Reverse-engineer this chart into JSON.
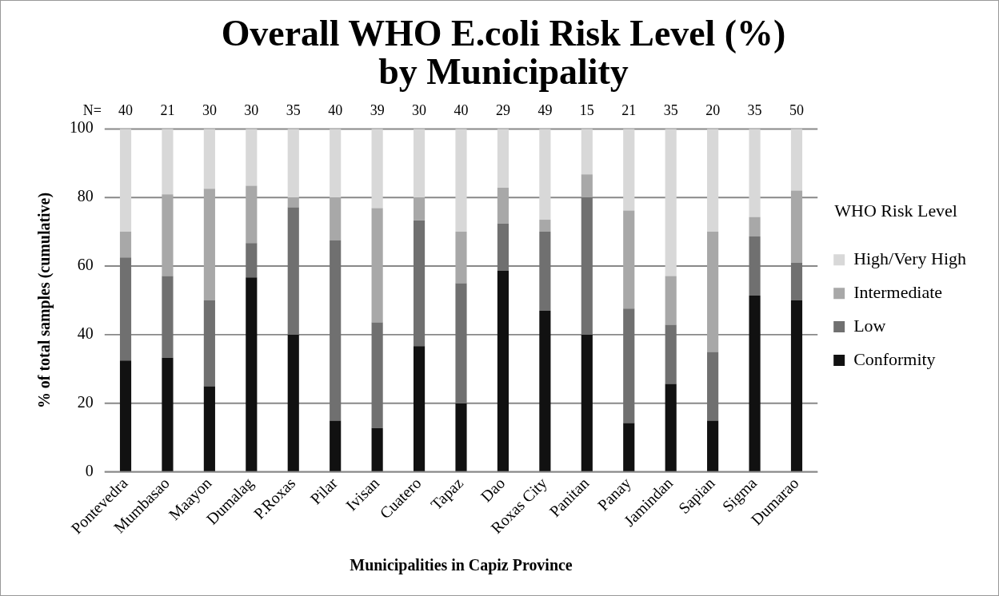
{
  "chart_data": {
    "type": "bar",
    "title": "Overall WHO E.coli Risk Level (%)\nby Municipality",
    "xlabel": "Municipalities in Capiz Province",
    "ylabel": "% of total samples (cumulative)",
    "legend_title": "WHO Risk Level",
    "categories": [
      "Pontevedra",
      "Mumbasao",
      "Maayon",
      "Dumalag",
      "P.Roxas",
      "Pilar",
      "Ivisan",
      "Cuatero",
      "Tapaz",
      "Dao",
      "Roxas City",
      "Panitan",
      "Panay",
      "Jamindan",
      "Sapian",
      "Sigma",
      "Dumarao"
    ],
    "stacked": true,
    "ylim": [
      0,
      100
    ],
    "yticks": [
      0,
      20,
      40,
      60,
      80,
      100
    ],
    "grid": "y",
    "legend": "right",
    "series": [
      {
        "name": "Conformity",
        "color": "#111111",
        "values": [
          32.5,
          33.3,
          25,
          56.7,
          40,
          15,
          12.8,
          36.7,
          20,
          58.6,
          47,
          40,
          14.3,
          25.7,
          15,
          51.4,
          50
        ]
      },
      {
        "name": "Low",
        "color": "#707070",
        "values": [
          30,
          23.8,
          25,
          10,
          37.1,
          52.5,
          30.8,
          36.6,
          35,
          13.8,
          23,
          40,
          33.3,
          17.2,
          20,
          17.2,
          11
        ]
      },
      {
        "name": "Intermediate",
        "color": "#a8a8a8",
        "values": [
          7.5,
          23.8,
          32.5,
          16.7,
          2.9,
          12.5,
          33.3,
          6.7,
          15,
          10.4,
          3.5,
          6.7,
          28.6,
          14.2,
          35,
          5.7,
          21
        ]
      },
      {
        "name": "High/Very High",
        "color": "#d8d8d8",
        "values": [
          30,
          19.1,
          17.5,
          16.6,
          20,
          20,
          23.1,
          20,
          30,
          17.2,
          26.5,
          13.3,
          23.8,
          42.9,
          30,
          25.7,
          18
        ]
      }
    ],
    "annotations": [
      "N=",
      "40",
      "21",
      "30",
      "30",
      "35",
      "40",
      "39",
      "30",
      "40",
      "29",
      "49",
      "15",
      "21",
      "35",
      "20",
      "35",
      "50"
    ]
  }
}
